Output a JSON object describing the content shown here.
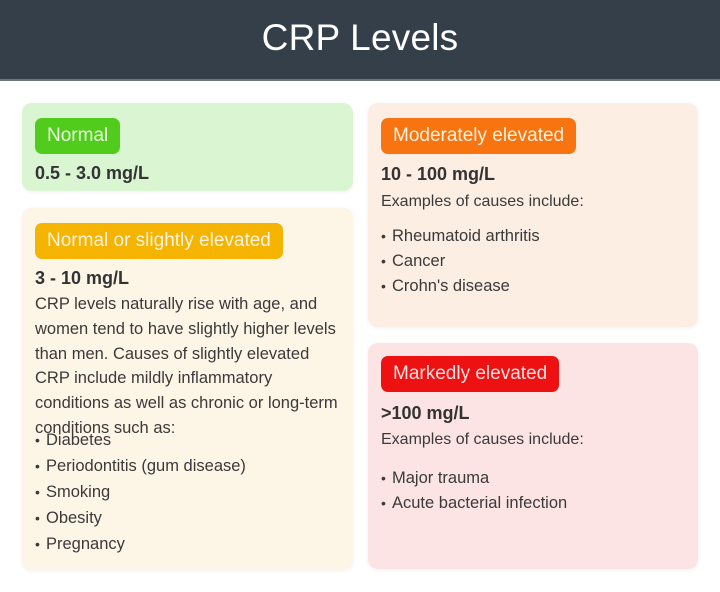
{
  "header": {
    "title": "CRP Levels"
  },
  "colors": {
    "header_bg": "#343f4a",
    "normal": "#52cc1c",
    "slightly_elevated": "#f5b400",
    "moderately_elevated": "#f77410",
    "markedly_elevated": "#ee1111"
  },
  "cards": {
    "normal": {
      "badge": "Normal",
      "range": "0.5 - 3.0 mg/L"
    },
    "slightly_elevated": {
      "badge": "Normal or slightly elevated",
      "range": "3 - 10 mg/L",
      "description": "CRP levels naturally rise with age, and women tend to have slightly higher levels than men. Causes of slightly elevated CRP include mildly inflammatory conditions as well as chronic or long-term conditions such as:",
      "causes": [
        "Diabetes",
        "Periodontitis (gum disease)",
        "Smoking",
        "Obesity",
        "Pregnancy"
      ]
    },
    "moderately_elevated": {
      "badge": "Moderately elevated",
      "range": "10 - 100 mg/L",
      "intro": "Examples of causes include:",
      "causes": [
        "Rheumatoid arthritis",
        "Cancer",
        "Crohn's disease"
      ]
    },
    "markedly_elevated": {
      "badge": "Markedly elevated",
      "range": ">100 mg/L",
      "intro": "Examples of causes include:",
      "causes": [
        "Major trauma",
        "Acute bacterial infection"
      ]
    }
  }
}
